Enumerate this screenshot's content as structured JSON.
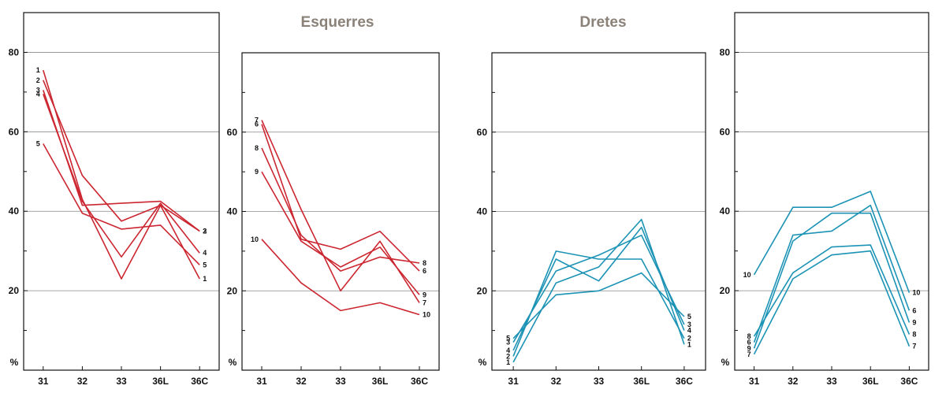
{
  "groups": [
    {
      "title": "Esquerres"
    },
    {
      "title": "Dretes"
    }
  ],
  "chart_data": [
    {
      "type": "line",
      "group": "Esquerres",
      "color": "#cc2630",
      "categories": [
        "31",
        "32",
        "33",
        "36L",
        "36C"
      ],
      "yticks": [
        20,
        40,
        60,
        80
      ],
      "ylim": [
        0,
        90
      ],
      "unit": "%",
      "grid": true,
      "series": [
        {
          "name": "1",
          "values": [
            75.5,
            43,
            23,
            41.5,
            23
          ]
        },
        {
          "name": "2",
          "values": [
            73,
            49,
            37.5,
            41.5,
            35
          ]
        },
        {
          "name": "3",
          "values": [
            70.5,
            41.5,
            42,
            42.5,
            35
          ]
        },
        {
          "name": "4",
          "values": [
            69.5,
            42.5,
            28.5,
            42,
            29.5
          ]
        },
        {
          "name": "5",
          "values": [
            57,
            39.5,
            35.5,
            36.5,
            26.5
          ]
        }
      ]
    },
    {
      "type": "line",
      "group": "Esquerres",
      "color": "#cc2630",
      "categories": [
        "31",
        "32",
        "33",
        "36L",
        "36C"
      ],
      "yticks": [
        20,
        40,
        60
      ],
      "ylim": [
        0,
        80
      ],
      "unit": "%",
      "grid": true,
      "series": [
        {
          "name": "7",
          "values": [
            63,
            40.5,
            20,
            32.5,
            17
          ]
        },
        {
          "name": "6",
          "values": [
            62,
            33,
            30.5,
            35,
            25
          ]
        },
        {
          "name": "8",
          "values": [
            56,
            34,
            25,
            28.5,
            27
          ]
        },
        {
          "name": "9",
          "values": [
            50,
            32.5,
            26,
            31,
            19
          ]
        },
        {
          "name": "10",
          "values": [
            33,
            22,
            15,
            17,
            14
          ]
        }
      ]
    },
    {
      "type": "line",
      "group": "Dretes",
      "color": "#1c93b5",
      "categories": [
        "31",
        "32",
        "33",
        "36L",
        "36C"
      ],
      "yticks": [
        20,
        40,
        60
      ],
      "ylim": [
        0,
        80
      ],
      "unit": "%",
      "grid": true,
      "series": [
        {
          "name": "5",
          "values": [
            8,
            19,
            20,
            24.5,
            13.5
          ]
        },
        {
          "name": "3",
          "values": [
            7,
            25,
            29,
            34,
            11.5
          ]
        },
        {
          "name": "4",
          "values": [
            5,
            28,
            22.5,
            36,
            10
          ]
        },
        {
          "name": "2",
          "values": [
            3.5,
            30,
            28,
            28,
            8
          ]
        },
        {
          "name": "1",
          "values": [
            2,
            22,
            26,
            38,
            6.5
          ]
        }
      ]
    },
    {
      "type": "line",
      "group": "Dretes",
      "color": "#1c93b5",
      "categories": [
        "31",
        "32",
        "33",
        "36L",
        "36C"
      ],
      "yticks": [
        20,
        40,
        60,
        80
      ],
      "ylim": [
        0,
        90
      ],
      "unit": "%",
      "grid": true,
      "series": [
        {
          "name": "10",
          "values": [
            24,
            41,
            41,
            45,
            19.5
          ]
        },
        {
          "name": "8",
          "values": [
            8.5,
            24.5,
            31,
            31.5,
            9
          ]
        },
        {
          "name": "6",
          "values": [
            7,
            34,
            35,
            41.5,
            15
          ]
        },
        {
          "name": "9",
          "values": [
            5.5,
            32.5,
            39.5,
            39.5,
            12
          ]
        },
        {
          "name": "7",
          "values": [
            4,
            23,
            29,
            30,
            6
          ]
        }
      ]
    }
  ]
}
